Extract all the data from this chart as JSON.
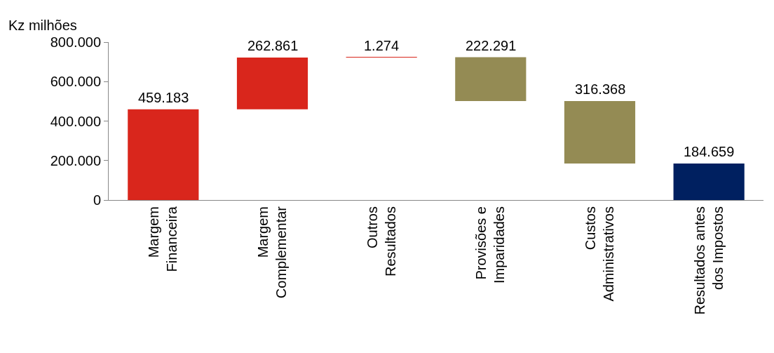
{
  "chart_data": {
    "type": "bar",
    "ylabel": "Kz milhões",
    "categories": [
      "Margem Financeira",
      "Margem Complementar",
      "Outros Resultados",
      "Provisões e Imparidades",
      "Custos Administrativos",
      "Resultados antes dos Impostos"
    ],
    "values": [
      459183,
      262861,
      1274,
      -222291,
      -316368,
      184659
    ],
    "base": [
      0,
      459183,
      722044,
      723318,
      501027,
      0
    ],
    "value_labels": [
      "459.183",
      "262.861",
      "1.274",
      "222.291",
      "316.368",
      "184.659"
    ],
    "colors": [
      "#d9261c",
      "#d9261c",
      "#d9261c",
      "#948b54",
      "#948b54",
      "#002060"
    ],
    "ylim": [
      0,
      800000
    ],
    "yticks": [
      {
        "value": 0,
        "label": "0"
      },
      {
        "value": 200000,
        "label": "200.000"
      },
      {
        "value": 400000,
        "label": "400.000"
      },
      {
        "value": 600000,
        "label": "600.000"
      },
      {
        "value": 800000,
        "label": "800.000"
      }
    ],
    "grid": false
  }
}
